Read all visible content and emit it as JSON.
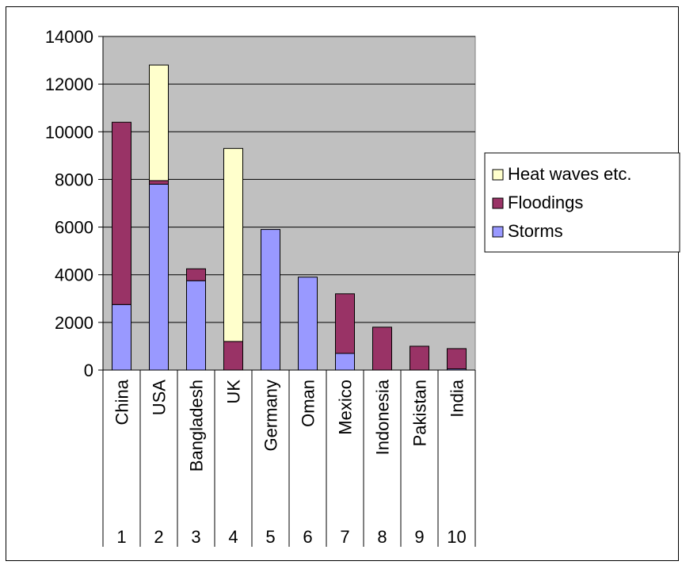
{
  "chart_data": {
    "type": "bar",
    "stacked": true,
    "title": "",
    "xlabel": "",
    "ylabel": "",
    "ylim": [
      0,
      14000
    ],
    "yticks": [
      0,
      2000,
      4000,
      6000,
      8000,
      10000,
      12000,
      14000
    ],
    "grid": true,
    "legend_position": "right",
    "categories": [
      "China",
      "USA",
      "Bangladesh",
      "UK",
      "Germany",
      "Oman",
      "Mexico",
      "Indonesia",
      "Pakistan",
      "India"
    ],
    "ranks": [
      "1",
      "2",
      "3",
      "4",
      "5",
      "6",
      "7",
      "8",
      "9",
      "10"
    ],
    "series": [
      {
        "name": "Storms",
        "color": "#9999ff",
        "values": [
          2750,
          7800,
          3750,
          0,
          5900,
          3900,
          700,
          0,
          0,
          50
        ]
      },
      {
        "name": "Floodings",
        "color": "#993366",
        "values": [
          7650,
          150,
          500,
          1200,
          0,
          0,
          2500,
          1800,
          1000,
          850
        ]
      },
      {
        "name": "Heat waves etc.",
        "color": "#ffffcc",
        "values": [
          0,
          4850,
          0,
          8100,
          0,
          0,
          0,
          0,
          0,
          0
        ]
      }
    ],
    "plot_background": "#c0c0c0",
    "legend_order": [
      "Heat waves etc.",
      "Floodings",
      "Storms"
    ]
  }
}
